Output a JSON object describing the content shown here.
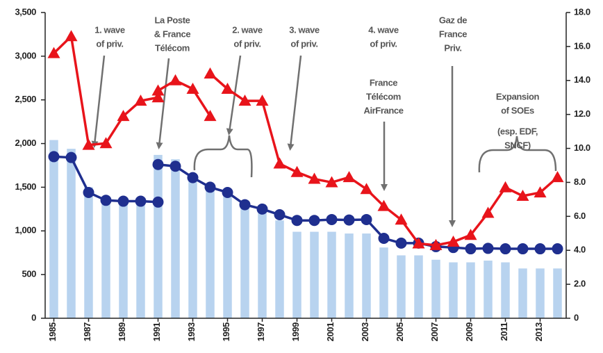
{
  "chart_data": {
    "type": "bar",
    "x": [
      1985,
      1986,
      1987,
      1988,
      1989,
      1990,
      1991,
      1992,
      1993,
      1994,
      1995,
      1996,
      1997,
      1998,
      1999,
      2000,
      2001,
      2002,
      2003,
      2004,
      2005,
      2006,
      2007,
      2008,
      2009,
      2010,
      2011,
      2012,
      2013,
      2014
    ],
    "xlim": [
      1984.5,
      2014.5
    ],
    "xticks": [
      1985,
      1987,
      1989,
      1991,
      1993,
      1995,
      1997,
      1999,
      2001,
      2003,
      2005,
      2007,
      2009,
      2011,
      2013
    ],
    "ylim": [
      0,
      3500
    ],
    "yticks": [
      0,
      {
        "value": 500,
        "label": "500"
      },
      {
        "value": 1000,
        "label": "1,000"
      },
      {
        "value": 1500,
        "label": "1,500"
      },
      {
        "value": 2000,
        "label": "2,000"
      },
      {
        "value": 2500,
        "label": "2,500"
      },
      {
        "value": 3000,
        "label": "3,000"
      },
      {
        "value": 3500,
        "label": "3,500"
      }
    ],
    "y2lim": [
      0,
      18
    ],
    "y2ticks": [
      0,
      {
        "value": 2,
        "label": "2.0"
      },
      {
        "value": 4,
        "label": "4.0"
      },
      {
        "value": 6,
        "label": "6.0"
      },
      {
        "value": 8,
        "label": "8.0"
      },
      {
        "value": 10,
        "label": "10.0"
      },
      {
        "value": 12,
        "label": "12.0"
      },
      {
        "value": 14,
        "label": "14.0"
      },
      {
        "value": 16,
        "label": "16.0"
      },
      {
        "value": 18,
        "label": "18.0"
      }
    ],
    "series": [
      {
        "type": "bar",
        "color": "#b8d3ef",
        "values": [
          2040,
          1940,
          1500,
          1380,
          1350,
          1350,
          1870,
          1820,
          1620,
          1520,
          1450,
          1320,
          1250,
          1120,
          990,
          990,
          990,
          970,
          970,
          810,
          720,
          720,
          670,
          640,
          640,
          660,
          640,
          570,
          570,
          570
        ]
      },
      {
        "type": "line",
        "color": "#1f2f8f",
        "marker": "circle",
        "x": [
          1985,
          1986,
          1987,
          1988,
          1989,
          1990,
          1991,
          null,
          1991,
          1992,
          1993,
          1994,
          1995,
          1996,
          1997,
          1998,
          1999,
          2000,
          2001,
          2002,
          2003,
          2004,
          2005,
          2006,
          2007,
          2008,
          2009,
          2010,
          2011,
          2012,
          2013,
          2014
        ],
        "values": [
          1850,
          1840,
          1440,
          1350,
          1340,
          1340,
          1330,
          null,
          1760,
          1740,
          1610,
          1500,
          1440,
          1300,
          1250,
          1185,
          1120,
          1120,
          1130,
          1125,
          1130,
          915,
          860,
          860,
          820,
          810,
          795,
          800,
          795,
          795,
          795,
          795
        ]
      },
      {
        "type": "line",
        "color": "#e8141b",
        "marker": "triangle",
        "axis": "y2",
        "x": [
          1985,
          1986,
          1987,
          1988,
          1989,
          1990,
          1991,
          1991,
          1992,
          1993,
          1994,
          null,
          1994,
          1995,
          1996,
          1997,
          1998,
          1999,
          2000,
          2001,
          2002,
          2003,
          2004,
          2005,
          2006,
          2007,
          2008,
          2009,
          2010,
          2011,
          2012,
          2013,
          2014
        ],
        "values": [
          15.6,
          16.6,
          10.2,
          10.3,
          11.9,
          12.8,
          13.0,
          13.4,
          14.0,
          13.5,
          11.9,
          null,
          14.4,
          13.5,
          12.8,
          12.8,
          9.1,
          8.6,
          8.2,
          8.0,
          8.3,
          7.6,
          6.6,
          5.8,
          4.4,
          4.3,
          4.5,
          4.9,
          6.2,
          7.7,
          7.2,
          7.4,
          8.3
        ]
      }
    ],
    "annotations": [
      {
        "lines": [
          "1. wave",
          "of priv."
        ]
      },
      {
        "lines": [
          "La Poste",
          "& France",
          "Télécom"
        ]
      },
      {
        "lines": [
          "2. wave",
          "of priv."
        ]
      },
      {
        "lines": [
          "3. wave",
          "of priv."
        ]
      },
      {
        "lines": [
          "4. wave",
          "of priv."
        ]
      },
      {
        "lines": [
          "France",
          "Télécom",
          "AirFrance"
        ]
      },
      {
        "lines": [
          "Gaz de",
          "France",
          "Priv."
        ]
      },
      {
        "lines": [
          "Expansion",
          "of SOEs"
        ]
      },
      {
        "lines": [
          "(esp. EDF,",
          "SNCF)"
        ]
      }
    ]
  }
}
